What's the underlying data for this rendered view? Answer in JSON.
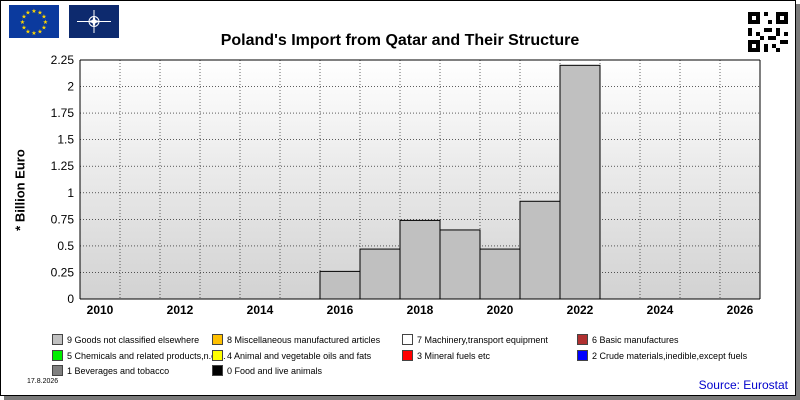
{
  "chart_data": {
    "type": "bar",
    "title": "Poland's Import from Qatar and Their Structure",
    "ylabel": "* Billion Euro",
    "xlabel": "",
    "categories": [
      "2010",
      "2011",
      "2012",
      "2013",
      "2014",
      "2015",
      "2016",
      "2017",
      "2018",
      "2019",
      "2020",
      "2021",
      "2022",
      "2023",
      "2024",
      "2025",
      "2026"
    ],
    "series": [
      {
        "name": "9 Goods not classified elsewhere",
        "color": "#c0c0c0",
        "values": [
          0,
          0,
          0,
          0,
          0,
          0,
          0.26,
          0.47,
          0.74,
          0.65,
          0.47,
          0.92,
          2.2,
          0,
          0,
          0,
          0
        ]
      }
    ],
    "x_tick_labels": [
      "2010",
      "2012",
      "2014",
      "2016",
      "2018",
      "2020",
      "2022",
      "2024",
      "2026"
    ],
    "y_ticks": [
      0,
      0.25,
      0.5,
      0.75,
      1,
      1.25,
      1.5,
      1.75,
      2,
      2.25
    ],
    "y_tick_labels": [
      "0",
      "0.25",
      "0.5",
      "0.75",
      "1",
      "1.25",
      "1.5",
      "1.75",
      "2",
      "2.25"
    ],
    "ylim": [
      0,
      2.25
    ],
    "grid": true,
    "legend": [
      {
        "label": "9 Goods not classified elsewhere",
        "color": "#c0c0c0"
      },
      {
        "label": "8 Miscellaneous manufactured articles",
        "color": "#ffc000"
      },
      {
        "label": "7 Machinery,transport equipment",
        "color": "#ffffff"
      },
      {
        "label": "6 Basic manufactures",
        "color": "#b03030"
      },
      {
        "label": "5 Chemicals and related products,n.e.s.",
        "color": "#00ee00"
      },
      {
        "label": "4 Animal and vegetable oils and fats",
        "color": "#ffff00"
      },
      {
        "label": "3 Mineral fuels etc",
        "color": "#ff0000"
      },
      {
        "label": "2 Crude materials,inedible,except fuels",
        "color": "#0000ff"
      },
      {
        "label": "1 Beverages and tobacco",
        "color": "#808080"
      },
      {
        "label": "0 Food and live animals",
        "color": "#000000"
      }
    ],
    "legend_placement": "bottom"
  },
  "footer": {
    "date": "17.8.2026",
    "source": "Source: Eurostat"
  }
}
